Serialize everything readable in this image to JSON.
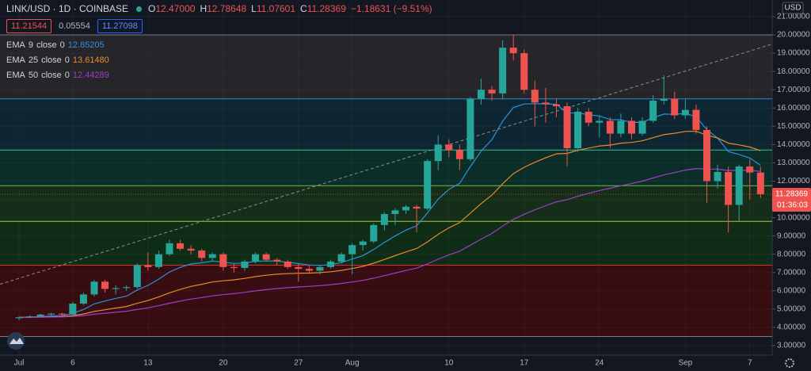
{
  "header": {
    "symbol": "LINK/USD · 1D · COINBASE",
    "ohlc": [
      {
        "key": "O",
        "value": "12.47000"
      },
      {
        "key": "H",
        "value": "12.78648"
      },
      {
        "key": "L",
        "value": "11.07601"
      },
      {
        "key": "C",
        "value": "11.28369"
      }
    ],
    "change": "−1.18631 (−9.51%)",
    "sell": "11.21544",
    "spread": "0.05554",
    "buy": "11.27098",
    "currency": "USD",
    "last_price_label": "11.28369",
    "countdown": "01:36:03"
  },
  "chart_data": {
    "type": "candlestick",
    "categories": [
      "Jul",
      null,
      null,
      null,
      null,
      "6",
      null,
      null,
      null,
      null,
      null,
      null,
      "13",
      null,
      null,
      null,
      null,
      null,
      null,
      "20",
      null,
      null,
      null,
      null,
      null,
      null,
      "27",
      null,
      null,
      null,
      null,
      "Aug",
      null,
      null,
      null,
      null,
      null,
      null,
      null,
      null,
      "10",
      null,
      null,
      null,
      null,
      null,
      null,
      "17",
      null,
      null,
      null,
      null,
      null,
      null,
      "24",
      null,
      null,
      null,
      null,
      null,
      null,
      null,
      "Sep",
      null,
      null,
      null,
      null,
      null,
      "7",
      null
    ],
    "open": [
      4.5,
      4.55,
      4.6,
      4.7,
      4.75,
      4.7,
      5.3,
      5.8,
      6.5,
      6.1,
      6.15,
      6.2,
      7.4,
      7.3,
      8.0,
      8.6,
      8.3,
      8.2,
      7.8,
      8.0,
      7.3,
      7.25,
      7.6,
      8.0,
      7.7,
      7.6,
      7.3,
      7.2,
      7.1,
      7.3,
      7.6,
      8.0,
      8.5,
      8.7,
      9.6,
      10.2,
      10.4,
      10.6,
      10.5,
      13.1,
      14.0,
      13.7,
      13.2,
      16.5,
      17.0,
      16.8,
      19.3,
      19.0,
      17.0,
      16.3,
      16.2,
      16.1,
      13.8,
      15.8,
      15.2,
      15.3,
      14.6,
      15.3,
      14.6,
      15.3,
      16.4,
      16.5,
      15.6,
      15.9,
      14.8,
      12.0,
      12.5,
      10.7,
      12.8,
      12.47
    ],
    "high": [
      4.6,
      4.65,
      4.75,
      4.8,
      4.8,
      5.4,
      5.9,
      6.6,
      6.6,
      6.3,
      6.3,
      7.5,
      8.1,
      8.2,
      8.8,
      8.8,
      8.5,
      8.3,
      8.1,
      8.1,
      7.5,
      7.7,
      8.1,
      8.1,
      7.8,
      7.7,
      7.5,
      7.4,
      7.4,
      7.7,
      8.1,
      8.6,
      8.8,
      9.7,
      10.3,
      10.5,
      10.7,
      10.7,
      13.2,
      14.5,
      14.3,
      14.0,
      16.6,
      17.6,
      17.2,
      19.7,
      20.0,
      19.2,
      17.5,
      17.1,
      16.5,
      16.3,
      16.0,
      16.0,
      15.6,
      15.5,
      15.7,
      15.5,
      15.5,
      16.7,
      17.8,
      16.9,
      16.5,
      16.2,
      15.0,
      12.9,
      12.8,
      12.9,
      13.2,
      12.78648
    ],
    "low": [
      4.4,
      4.5,
      4.55,
      4.65,
      4.6,
      4.65,
      5.2,
      5.7,
      5.9,
      5.8,
      6.0,
      6.1,
      7.1,
      7.2,
      7.9,
      8.2,
      8.0,
      7.6,
      7.6,
      7.1,
      7.0,
      7.1,
      7.5,
      7.6,
      7.4,
      7.2,
      6.5,
      7.0,
      6.9,
      7.2,
      7.5,
      6.9,
      8.2,
      8.6,
      9.3,
      9.6,
      10.2,
      9.2,
      10.4,
      12.6,
      13.3,
      12.6,
      13.1,
      16.2,
      16.4,
      16.5,
      18.6,
      16.8,
      15.0,
      15.2,
      15.5,
      12.8,
      13.6,
      15.0,
      14.4,
      13.8,
      14.4,
      14.3,
      14.5,
      15.2,
      16.2,
      15.4,
      15.4,
      14.6,
      10.8,
      11.6,
      9.2,
      9.8,
      11.0,
      11.07601
    ],
    "close": [
      4.55,
      4.6,
      4.7,
      4.75,
      4.7,
      5.3,
      5.8,
      6.5,
      6.1,
      6.15,
      6.2,
      7.4,
      7.3,
      8.0,
      8.6,
      8.3,
      8.2,
      7.8,
      8.0,
      7.3,
      7.25,
      7.6,
      8.0,
      7.7,
      7.6,
      7.3,
      7.2,
      7.1,
      7.3,
      7.6,
      8.0,
      8.5,
      8.7,
      9.6,
      10.2,
      10.4,
      10.6,
      10.5,
      13.1,
      14.0,
      13.7,
      13.2,
      16.5,
      17.0,
      16.8,
      19.3,
      19.0,
      17.0,
      16.3,
      16.2,
      16.1,
      13.8,
      15.8,
      15.2,
      15.3,
      14.6,
      15.3,
      14.6,
      15.3,
      16.4,
      16.5,
      15.6,
      15.9,
      14.8,
      12.0,
      12.5,
      10.7,
      12.8,
      12.47,
      11.28369
    ],
    "up_color": "#26a69a",
    "down_color": "#ef5350",
    "ylim": [
      2.48,
      21.91
    ],
    "yticks": [
      {
        "value": 3,
        "label": "3.00000"
      },
      {
        "value": 4,
        "label": "4.00000"
      },
      {
        "value": 5,
        "label": "5.00000"
      },
      {
        "value": 6,
        "label": "6.00000"
      },
      {
        "value": 7,
        "label": "7.00000"
      },
      {
        "value": 8,
        "label": "8.00000"
      },
      {
        "value": 9,
        "label": "9.00000"
      },
      {
        "value": 10,
        "label": "10.00000"
      },
      {
        "value": 11,
        "label": "11.00000"
      },
      {
        "value": 12,
        "label": "12.00000"
      },
      {
        "value": 13,
        "label": "13.00000"
      },
      {
        "value": 14,
        "label": "14.00000"
      },
      {
        "value": 15,
        "label": "15.00000"
      },
      {
        "value": 16,
        "label": "16.00000"
      },
      {
        "value": 17,
        "label": "17.00000"
      },
      {
        "value": 18,
        "label": "18.00000"
      },
      {
        "value": 19,
        "label": "19.00000"
      },
      {
        "value": 20,
        "label": "20.00000"
      },
      {
        "value": 21,
        "label": "21.00000"
      }
    ],
    "grid": true,
    "indicators": [
      {
        "name": "EMA",
        "length": 9,
        "source": "close",
        "offset": 0,
        "value": 12.85205,
        "color": "#2e8fe0"
      },
      {
        "name": "EMA",
        "length": 25,
        "source": "close",
        "offset": 0,
        "value": 13.6148,
        "value_label": "13.61480",
        "color": "#e8892b"
      },
      {
        "name": "EMA",
        "length": 50,
        "source": "close",
        "offset": 0,
        "value": 12.44289,
        "color": "#9c3fc9"
      }
    ],
    "fib_levels": [
      {
        "value": 20.0,
        "color": "#787b86",
        "fill": "#26262a"
      },
      {
        "value": 16.5,
        "color": "#2f86c5",
        "fill": "#0e2631"
      },
      {
        "value": 13.7,
        "color": "#2fbf9a",
        "fill": "#0c2e28"
      },
      {
        "value": 11.75,
        "color": "#69bd45",
        "fill": "#142e19"
      },
      {
        "value": 9.8,
        "color": "#a2c93a",
        "fill": "#0f2d16"
      },
      {
        "value": 7.4,
        "color": "#d6302e",
        "fill": "#370d12"
      },
      {
        "value": 3.5,
        "color": "#787b86",
        "fill": null
      }
    ],
    "trendline": {
      "start": 6.36,
      "end": 19.5,
      "color": "#8a8d96"
    }
  }
}
